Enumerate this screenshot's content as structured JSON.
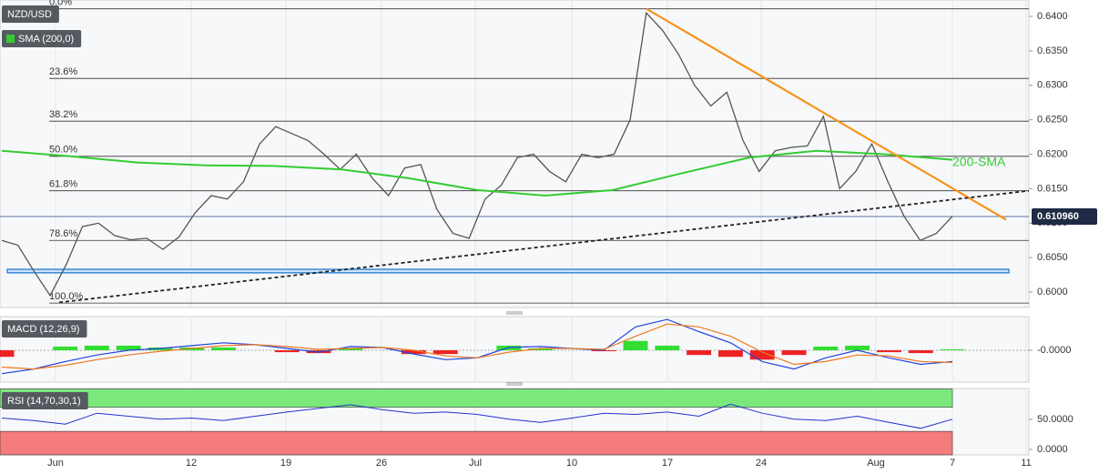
{
  "chart_data": [
    {
      "type": "price",
      "ylim": [
        0.59776,
        0.64238
      ],
      "yticks": [
        {
          "value": 0.6,
          "label": "0.6000"
        },
        {
          "value": 0.605,
          "label": "0.6050"
        },
        {
          "value": 0.61,
          "label": "0.6100"
        },
        {
          "value": 0.615,
          "label": "0.6150"
        },
        {
          "value": 0.62,
          "label": "0.6200"
        },
        {
          "value": 0.625,
          "label": "0.6250"
        },
        {
          "value": 0.63,
          "label": "0.6300"
        },
        {
          "value": 0.635,
          "label": "0.6350"
        },
        {
          "value": 0.64,
          "label": "0.6400"
        }
      ],
      "series": [
        {
          "name": "NZD/USD",
          "color": "#555555",
          "values": [
            0.6075,
            0.6068,
            0.603,
            0.5995,
            0.604,
            0.6095,
            0.61,
            0.6082,
            0.6076,
            0.6078,
            0.6062,
            0.608,
            0.6115,
            0.614,
            0.6135,
            0.616,
            0.6215,
            0.624,
            0.623,
            0.622,
            0.62,
            0.6178,
            0.62,
            0.6165,
            0.614,
            0.618,
            0.6185,
            0.612,
            0.6085,
            0.6078,
            0.6135,
            0.6155,
            0.6195,
            0.62,
            0.6175,
            0.616,
            0.62,
            0.6195,
            0.62,
            0.625,
            0.6405,
            0.638,
            0.6345,
            0.63,
            0.627,
            0.629,
            0.622,
            0.6175,
            0.6205,
            0.621,
            0.6212,
            0.6255,
            0.615,
            0.6175,
            0.6215,
            0.616,
            0.611,
            0.6075,
            0.6085,
            0.611
          ]
        },
        {
          "name": "SMA (200,0)",
          "color": "#33cc33",
          "values": [
            0.6205,
            0.6197,
            0.6188,
            0.6184,
            0.6183,
            0.6178,
            0.6165,
            0.6148,
            0.614,
            0.6148,
            0.6172,
            0.6195,
            0.6205,
            0.62,
            0.6192
          ]
        }
      ],
      "fib_levels": [
        {
          "label": "0.0%",
          "value": 0.6411
        },
        {
          "label": "23.6%",
          "value": 0.631
        },
        {
          "label": "38.2%",
          "value": 0.6248
        },
        {
          "label": "50.0%",
          "value": 0.6197
        },
        {
          "label": "61.8%",
          "value": 0.6147
        },
        {
          "label": "78.6%",
          "value": 0.6075
        },
        {
          "label": "100.0%",
          "value": 0.5984
        }
      ],
      "trendlines": [
        {
          "color": "#f7941d",
          "dashed": false,
          "values": [
            0.6411,
            0.6105
          ]
        },
        {
          "color": "#222222",
          "dashed": true,
          "values": [
            0.5985,
            0.6147
          ]
        }
      ],
      "support_zone": [
        0.6028,
        0.6033
      ],
      "annotation": {
        "text": "200-SMA",
        "value": 0.6188
      },
      "last_price": {
        "value": 0.61096,
        "label": "0.610960"
      }
    },
    {
      "type": "macd",
      "title": "MACD (12,26,9)",
      "ylim": [
        -0.0034,
        0.0036
      ],
      "yticks": [
        {
          "value": 0,
          "label": "-0.0000"
        }
      ],
      "series": [
        {
          "color": "#2244dd",
          "values": [
            -0.0025,
            -0.002,
            -0.0012,
            -0.0005,
            0.0,
            0.0002,
            0.0005,
            0.0008,
            0.0006,
            0.0002,
            -0.0002,
            0.0004,
            0.0003,
            -0.0004,
            -0.001,
            -0.0008,
            0.0003,
            0.0004,
            0.0002,
            0.0,
            0.0025,
            0.0033,
            0.002,
            0.0008,
            -0.0012,
            -0.002,
            -0.0008,
            0.0,
            -0.0008,
            -0.0015,
            -0.0012
          ]
        },
        {
          "color": "#f07820",
          "values": [
            -0.0018,
            -0.002,
            -0.0016,
            -0.001,
            -0.0005,
            -0.0001,
            0.0002,
            0.0005,
            0.0006,
            0.0004,
            0.0001,
            0.0002,
            0.0003,
            0.0,
            -0.0006,
            -0.0008,
            -0.0002,
            0.0002,
            0.0002,
            0.0001,
            0.0015,
            0.0028,
            0.0025,
            0.0015,
            -0.0002,
            -0.0015,
            -0.0012,
            -0.0005,
            -0.0006,
            -0.0012,
            -0.0013
          ]
        }
      ],
      "histogram": {
        "positive_color": "#33dd33",
        "negative_color": "#ee2222",
        "values": [
          -0.0007,
          0.0,
          0.0004,
          0.0005,
          0.0005,
          0.0003,
          0.0003,
          0.0003,
          0.0,
          -0.0002,
          -0.0003,
          0.0002,
          0.0,
          -0.0004,
          -0.0004,
          0.0,
          0.0005,
          0.0002,
          0.0,
          -0.0001,
          0.001,
          0.0005,
          -0.0005,
          -0.0007,
          -0.001,
          -0.0005,
          0.0004,
          0.0005,
          -0.0002,
          -0.0003,
          0.0001
        ]
      }
    },
    {
      "type": "rsi",
      "title": "RSI (14,70,30,1)",
      "ylim": [
        -9,
        101
      ],
      "yticks": [
        {
          "value": 0,
          "label": "0.0000"
        },
        {
          "value": 50,
          "label": "50.0000"
        }
      ],
      "series": [
        {
          "color": "#2233cc",
          "values": [
            52,
            48,
            42,
            60,
            55,
            50,
            52,
            48,
            55,
            62,
            68,
            74,
            66,
            60,
            62,
            58,
            50,
            45,
            52,
            60,
            58,
            62,
            55,
            75,
            60,
            50,
            48,
            55,
            45,
            35,
            50
          ]
        }
      ],
      "bands": [
        {
          "range": [
            70,
            100
          ],
          "color": "#7be87b"
        },
        {
          "range": [
            -9,
            30
          ],
          "color": "#f47c7c"
        }
      ],
      "xtick_labels": [
        "Jun",
        "12",
        "19",
        "26",
        "Jul",
        "10",
        "17",
        "24",
        "Aug",
        "7",
        "11"
      ]
    }
  ]
}
